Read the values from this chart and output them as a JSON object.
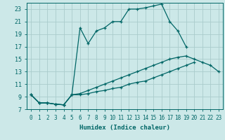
{
  "bg_color": "#cce8e8",
  "grid_color": "#aacccc",
  "line_color": "#006666",
  "xlabel": "Humidex (Indice chaleur)",
  "xlim": [
    -0.5,
    23.5
  ],
  "ylim": [
    7,
    24
  ],
  "yticks": [
    7,
    9,
    11,
    13,
    15,
    17,
    19,
    21,
    23
  ],
  "xticks": [
    0,
    1,
    2,
    3,
    4,
    5,
    6,
    7,
    8,
    9,
    10,
    11,
    12,
    13,
    14,
    15,
    16,
    17,
    18,
    19,
    20,
    21,
    22,
    23
  ],
  "line1_x": [
    0,
    1,
    2,
    3,
    4,
    5,
    6,
    7,
    8,
    9,
    10,
    11,
    12,
    13,
    14,
    15,
    16,
    17,
    18,
    19,
    20,
    21,
    22,
    23
  ],
  "line1_y": [
    9.3,
    8.0,
    8.0,
    7.8,
    7.7,
    9.3,
    20.0,
    17.5,
    19.5,
    20.0,
    21.0,
    21.0,
    23.0,
    23.0,
    23.2,
    23.5,
    23.8,
    21.0,
    19.5,
    17.0,
    null,
    null,
    null,
    null
  ],
  "line2_x": [
    0,
    1,
    2,
    3,
    4,
    5,
    6,
    7,
    8,
    9,
    10,
    11,
    12,
    13,
    14,
    15,
    16,
    17,
    18,
    19,
    20,
    21,
    22,
    23
  ],
  "line2_y": [
    9.3,
    8.0,
    8.0,
    7.8,
    7.7,
    9.3,
    9.5,
    10.0,
    10.5,
    11.0,
    11.5,
    12.0,
    12.5,
    13.0,
    13.5,
    14.0,
    14.5,
    15.0,
    15.3,
    15.5,
    15.0,
    14.5,
    14.0,
    13.0
  ],
  "line3_x": [
    0,
    1,
    2,
    3,
    4,
    5,
    6,
    7,
    8,
    9,
    10,
    11,
    12,
    13,
    14,
    15,
    16,
    17,
    18,
    19,
    20,
    21,
    22,
    23
  ],
  "line3_y": [
    9.3,
    8.0,
    8.0,
    7.8,
    7.7,
    9.3,
    9.3,
    9.5,
    9.8,
    10.0,
    10.3,
    10.5,
    11.0,
    11.3,
    11.5,
    12.0,
    12.5,
    13.0,
    13.5,
    14.0,
    14.5,
    null,
    null,
    null
  ],
  "marker": "+"
}
